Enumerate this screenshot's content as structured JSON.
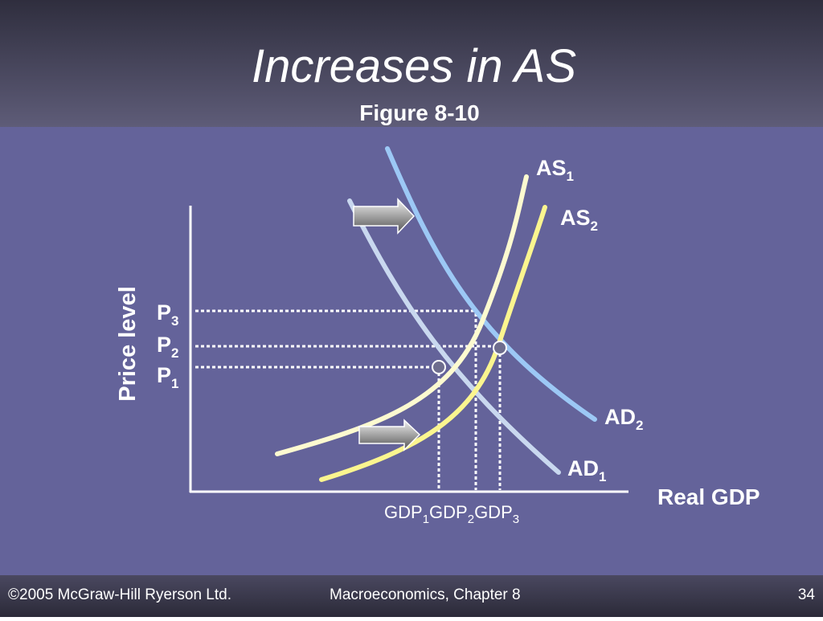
{
  "header": {
    "title": "Increases in AS",
    "subtitle": "Figure 8-10"
  },
  "diagram": {
    "y_axis_label": "Price level",
    "x_axis_label": "Real GDP",
    "curves": [
      {
        "text": "AS",
        "sub": "1"
      },
      {
        "text": "AS",
        "sub": "2"
      },
      {
        "text": "AD",
        "sub": "2"
      },
      {
        "text": "AD",
        "sub": "1"
      }
    ],
    "price_labels": [
      {
        "text": "P",
        "sub": "3"
      },
      {
        "text": "P",
        "sub": "2"
      },
      {
        "text": "P",
        "sub": "1"
      }
    ],
    "gdp_labels": [
      {
        "text": "GDP",
        "sub": "1"
      },
      {
        "text": "GDP",
        "sub": "2"
      },
      {
        "text": "GDP",
        "sub": "3"
      }
    ]
  },
  "footer": {
    "left": "©2005 McGraw-Hill Ryerson Ltd.",
    "center": "Macroeconomics, Chapter 8",
    "page": "34"
  }
}
